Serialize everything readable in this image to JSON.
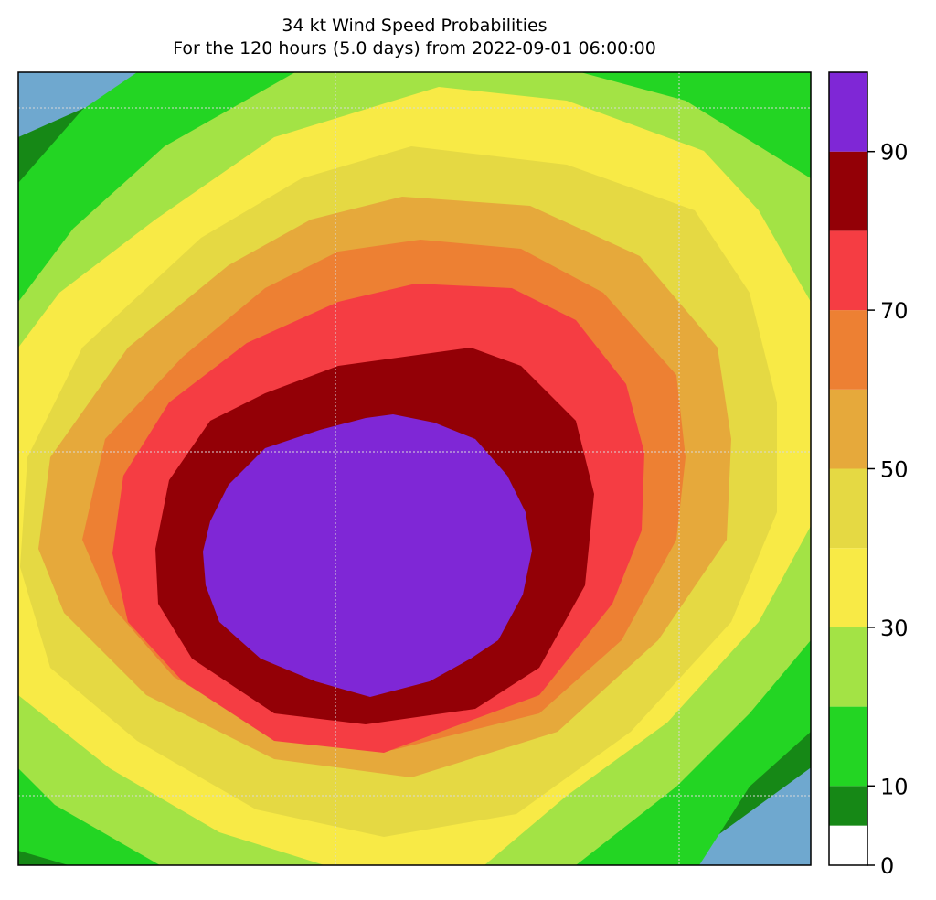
{
  "title": {
    "line1": "34 kt Wind Speed Probabilities",
    "line2": "For the 120 hours (5.0 days) from 2022-09-01 06:00:00"
  },
  "map": {
    "ocean_color": "#6fa8cf",
    "gridline_color": "#d9d9d9"
  },
  "colorbar": {
    "range": [
      0,
      100
    ],
    "bands": [
      {
        "from": 0,
        "to": 5,
        "color": "#ffffff"
      },
      {
        "from": 5,
        "to": 10,
        "color": "#168816"
      },
      {
        "from": 10,
        "to": 20,
        "color": "#23d523"
      },
      {
        "from": 20,
        "to": 30,
        "color": "#a3e345"
      },
      {
        "from": 30,
        "to": 40,
        "color": "#f8ea46"
      },
      {
        "from": 40,
        "to": 50,
        "color": "#e5d943"
      },
      {
        "from": 50,
        "to": 60,
        "color": "#e6a93b"
      },
      {
        "from": 60,
        "to": 70,
        "color": "#ed8033"
      },
      {
        "from": 70,
        "to": 80,
        "color": "#f53d43"
      },
      {
        "from": 80,
        "to": 90,
        "color": "#930006"
      },
      {
        "from": 90,
        "to": 100,
        "color": "#7f27d6"
      }
    ],
    "ticks": [
      {
        "value": 0,
        "label": "0"
      },
      {
        "value": 10,
        "label": "10"
      },
      {
        "value": 30,
        "label": "30"
      },
      {
        "value": 50,
        "label": "50"
      },
      {
        "value": 70,
        "label": "70"
      },
      {
        "value": 90,
        "label": "90"
      }
    ]
  }
}
